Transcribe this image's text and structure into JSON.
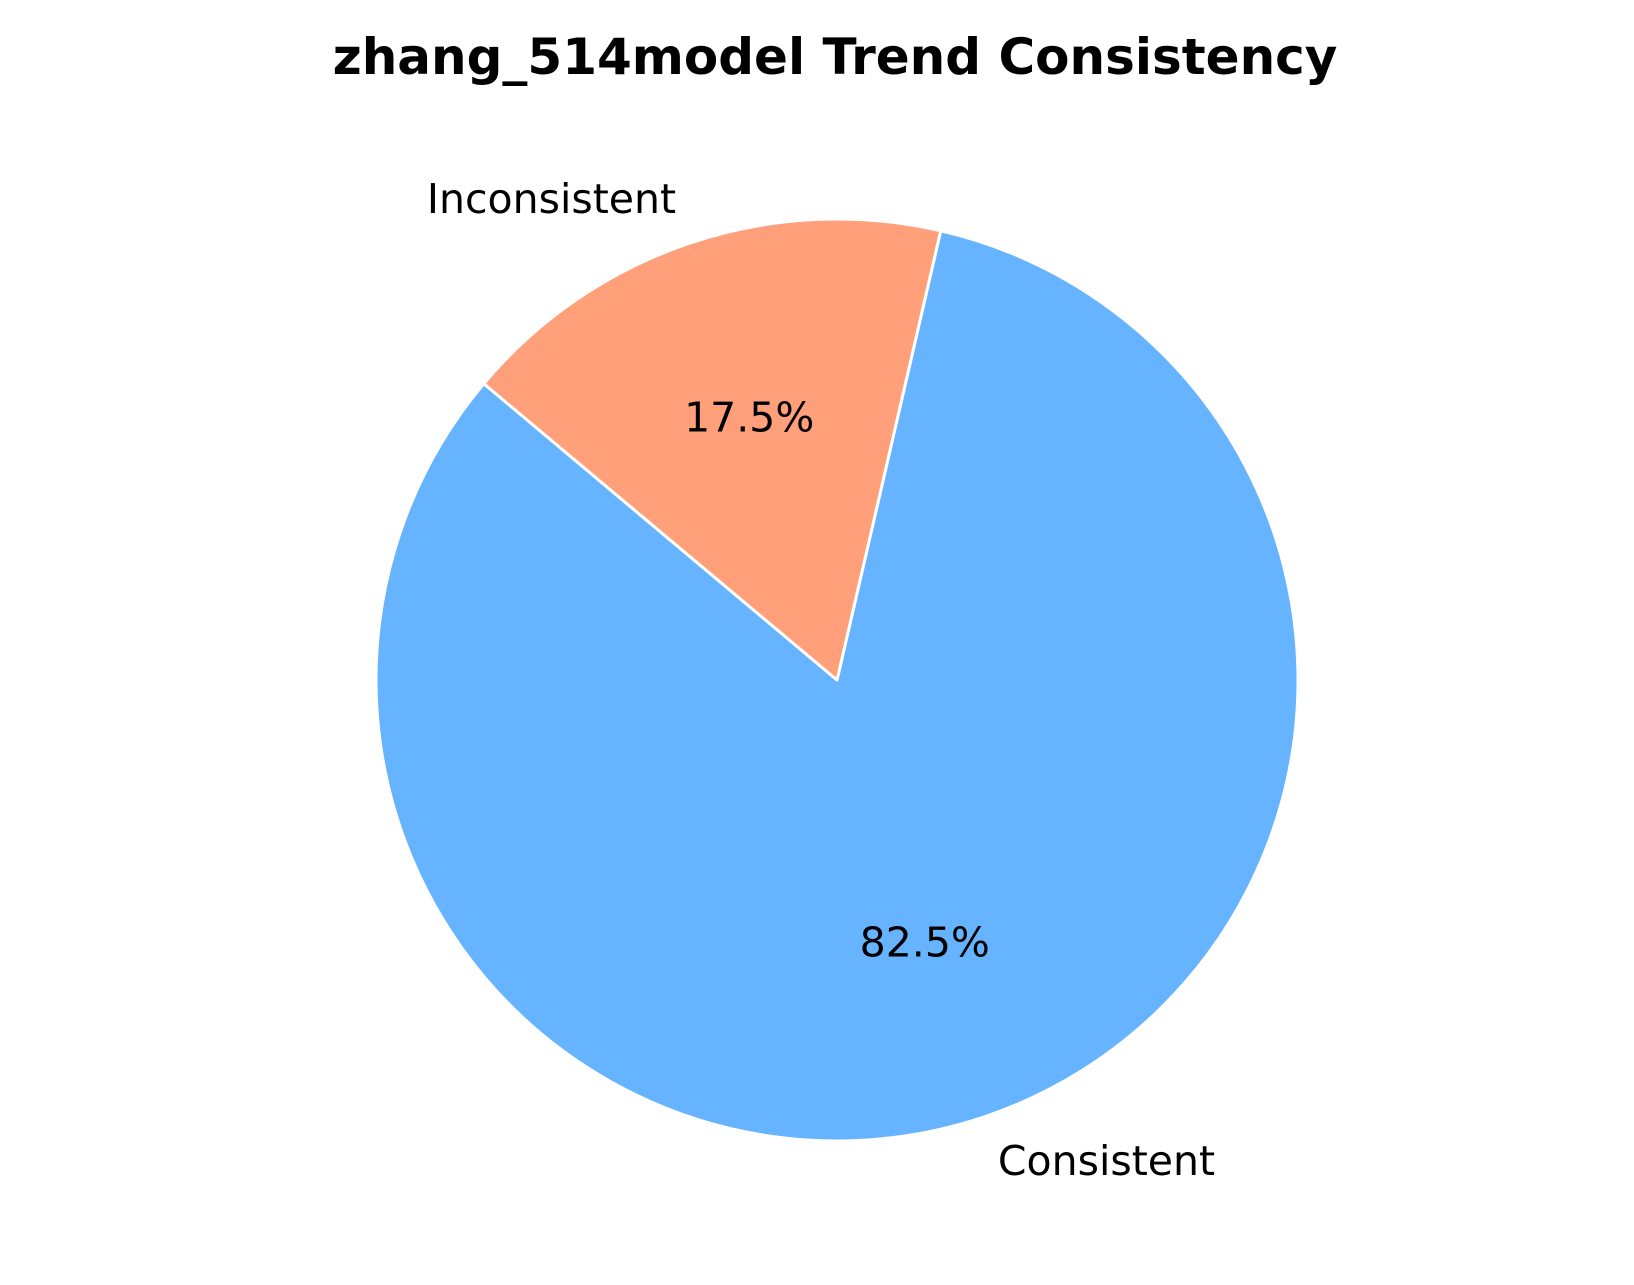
{
  "chart_data": {
    "type": "pie",
    "title": "zhang_514model Trend Consistency",
    "slices": [
      {
        "label": "Consistent",
        "value": 82.5,
        "pct_label": "82.5%",
        "color": "#66b3ff"
      },
      {
        "label": "Inconsistent",
        "value": 17.5,
        "pct_label": "17.5%",
        "color": "#ffa07a"
      }
    ],
    "edge_color": "#ffffff"
  }
}
